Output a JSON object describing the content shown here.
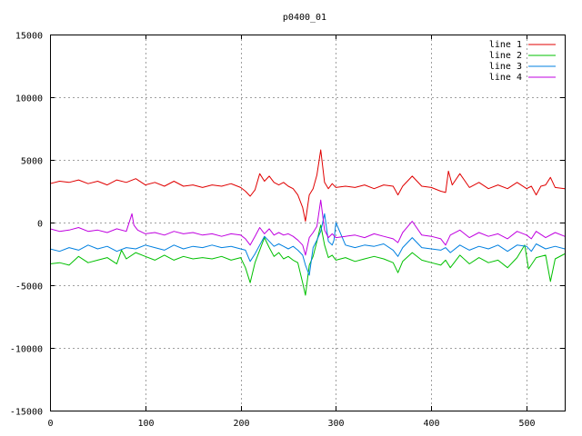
{
  "chart_data": {
    "type": "line",
    "title": "p0400_01",
    "xlabel": "",
    "ylabel": "",
    "xlim": [
      0,
      540
    ],
    "ylim": [
      -15000,
      15000
    ],
    "xticks": [
      0,
      100,
      200,
      300,
      400,
      500
    ],
    "yticks": [
      -15000,
      -10000,
      -5000,
      0,
      5000,
      10000,
      15000
    ],
    "xtick_labels": [
      "0",
      "100",
      "200",
      "300",
      "400",
      "500"
    ],
    "ytick_labels": [
      "-15000",
      "-10000",
      "-5000",
      "0",
      "5000",
      "10000",
      "15000"
    ],
    "grid": true,
    "legend_position": "top-right",
    "series": [
      {
        "name": "line 1",
        "color": "#e00000",
        "x": [
          0,
          10,
          20,
          30,
          40,
          50,
          60,
          70,
          80,
          90,
          100,
          110,
          120,
          130,
          140,
          150,
          160,
          170,
          180,
          190,
          200,
          205,
          210,
          215,
          220,
          225,
          230,
          235,
          240,
          245,
          250,
          255,
          260,
          265,
          268,
          272,
          276,
          280,
          284,
          288,
          292,
          296,
          300,
          310,
          320,
          330,
          340,
          350,
          360,
          365,
          370,
          380,
          390,
          400,
          410,
          415,
          418,
          422,
          430,
          440,
          450,
          460,
          470,
          480,
          490,
          500,
          505,
          510,
          515,
          520,
          525,
          530,
          540
        ],
        "y": [
          3100,
          3300,
          3200,
          3400,
          3100,
          3300,
          3000,
          3400,
          3200,
          3500,
          3000,
          3200,
          2900,
          3300,
          2900,
          3000,
          2800,
          3000,
          2900,
          3100,
          2800,
          2500,
          2100,
          2600,
          3900,
          3300,
          3700,
          3200,
          3000,
          3200,
          2900,
          2700,
          2200,
          1200,
          100,
          2200,
          2700,
          3800,
          5800,
          3200,
          2700,
          3100,
          2800,
          2900,
          2800,
          3000,
          2700,
          3000,
          2900,
          2200,
          2900,
          3700,
          2900,
          2800,
          2500,
          2400,
          4100,
          3000,
          3900,
          2800,
          3200,
          2700,
          3000,
          2700,
          3200,
          2700,
          2900,
          2200,
          2900,
          3000,
          3600,
          2800,
          2700
        ]
      },
      {
        "name": "line 2",
        "color": "#00c000",
        "x": [
          0,
          10,
          20,
          30,
          40,
          50,
          60,
          70,
          75,
          80,
          90,
          100,
          110,
          120,
          130,
          140,
          150,
          160,
          170,
          180,
          190,
          200,
          205,
          210,
          215,
          220,
          225,
          230,
          235,
          240,
          245,
          250,
          255,
          260,
          265,
          268,
          272,
          276,
          280,
          284,
          288,
          292,
          296,
          300,
          310,
          320,
          330,
          340,
          350,
          360,
          365,
          370,
          380,
          390,
          400,
          410,
          415,
          420,
          430,
          440,
          450,
          460,
          470,
          480,
          490,
          498,
          502,
          510,
          520,
          525,
          530,
          540
        ],
        "y": [
          -3300,
          -3200,
          -3400,
          -2700,
          -3200,
          -3000,
          -2800,
          -3300,
          -2200,
          -2900,
          -2400,
          -2700,
          -3000,
          -2600,
          -3000,
          -2700,
          -2900,
          -2800,
          -2900,
          -2700,
          -3000,
          -2800,
          -3600,
          -4800,
          -3200,
          -2200,
          -1200,
          -2000,
          -2700,
          -2400,
          -2900,
          -2700,
          -3000,
          -3200,
          -4800,
          -5800,
          -3400,
          -2700,
          -1500,
          -200,
          -1800,
          -2800,
          -2600,
          -3000,
          -2800,
          -3100,
          -2900,
          -2700,
          -2900,
          -3200,
          -4000,
          -3100,
          -2400,
          -3000,
          -3200,
          -3400,
          -3000,
          -3600,
          -2600,
          -3300,
          -2800,
          -3200,
          -3000,
          -3600,
          -2800,
          -1800,
          -3700,
          -2800,
          -2600,
          -4700,
          -2900,
          -2500
        ]
      },
      {
        "name": "line 3",
        "color": "#0080e0",
        "x": [
          0,
          10,
          20,
          30,
          40,
          50,
          60,
          70,
          80,
          90,
          100,
          110,
          120,
          130,
          140,
          150,
          160,
          170,
          180,
          190,
          200,
          205,
          210,
          215,
          220,
          225,
          230,
          235,
          240,
          245,
          250,
          255,
          260,
          265,
          268,
          272,
          276,
          280,
          284,
          288,
          292,
          296,
          298,
          300,
          310,
          320,
          330,
          340,
          350,
          360,
          365,
          370,
          380,
          390,
          400,
          410,
          415,
          420,
          430,
          440,
          450,
          460,
          470,
          480,
          490,
          500,
          505,
          510,
          520,
          530,
          540
        ],
        "y": [
          -2100,
          -2300,
          -2000,
          -2200,
          -1800,
          -2100,
          -1900,
          -2300,
          -2000,
          -2100,
          -1800,
          -2000,
          -2200,
          -1800,
          -2100,
          -1900,
          -2000,
          -1800,
          -2000,
          -1900,
          -2100,
          -2200,
          -3100,
          -2500,
          -1800,
          -1100,
          -1500,
          -1900,
          -1700,
          -1900,
          -2100,
          -1900,
          -2200,
          -2600,
          -3400,
          -4200,
          -2000,
          -1400,
          -700,
          700,
          -1500,
          -1800,
          -1400,
          0,
          -1800,
          -2000,
          -1800,
          -1900,
          -1700,
          -2200,
          -2700,
          -2000,
          -1200,
          -2000,
          -2100,
          -2200,
          -2000,
          -2400,
          -1800,
          -2200,
          -1900,
          -2100,
          -1800,
          -2300,
          -1800,
          -1900,
          -2300,
          -1700,
          -2100,
          -1900,
          -2100
        ]
      },
      {
        "name": "line 4",
        "color": "#c000e0",
        "x": [
          0,
          10,
          20,
          30,
          40,
          50,
          60,
          70,
          80,
          86,
          88,
          92,
          100,
          110,
          120,
          130,
          140,
          150,
          160,
          170,
          180,
          190,
          200,
          205,
          210,
          215,
          220,
          225,
          230,
          235,
          240,
          245,
          250,
          255,
          260,
          265,
          268,
          272,
          276,
          280,
          284,
          288,
          292,
          296,
          300,
          310,
          320,
          330,
          340,
          350,
          360,
          365,
          370,
          380,
          390,
          400,
          410,
          415,
          420,
          430,
          440,
          450,
          460,
          470,
          480,
          490,
          500,
          505,
          510,
          520,
          530,
          540
        ],
        "y": [
          -500,
          -700,
          -600,
          -400,
          -700,
          -600,
          -800,
          -500,
          -700,
          700,
          -200,
          -600,
          -900,
          -800,
          -1000,
          -700,
          -900,
          -800,
          -1000,
          -900,
          -1100,
          -900,
          -1000,
          -1300,
          -1800,
          -1100,
          -400,
          -900,
          -500,
          -1000,
          -800,
          -1000,
          -900,
          -1100,
          -1400,
          -1800,
          -2600,
          -1200,
          -800,
          -300,
          1800,
          -600,
          -1200,
          -900,
          -1200,
          -1100,
          -1000,
          -1200,
          -900,
          -1100,
          -1300,
          -1600,
          -800,
          100,
          -1000,
          -1100,
          -1300,
          -1800,
          -1000,
          -600,
          -1200,
          -800,
          -1100,
          -900,
          -1300,
          -700,
          -1000,
          -1300,
          -700,
          -1200,
          -800,
          -1100
        ]
      }
    ]
  }
}
